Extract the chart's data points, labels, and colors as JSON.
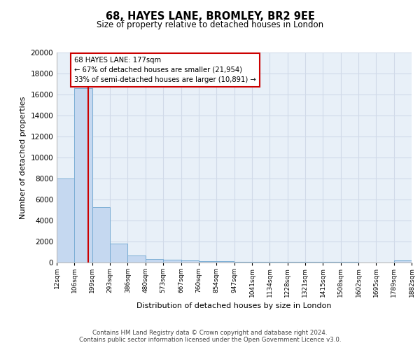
{
  "title": "68, HAYES LANE, BROMLEY, BR2 9EE",
  "subtitle": "Size of property relative to detached houses in London",
  "xlabel": "Distribution of detached houses by size in London",
  "ylabel": "Number of detached properties",
  "bar_color": "#c5d8f0",
  "bar_edge_color": "#7aadd4",
  "background_color": "#e8f0f8",
  "grid_color": "#d0dae8",
  "annotation_text": "68 HAYES LANE: 177sqm\n← 67% of detached houses are smaller (21,954)\n33% of semi-detached houses are larger (10,891) →",
  "red_line_x": 177,
  "bin_edges": [
    12,
    106,
    199,
    293,
    386,
    480,
    573,
    667,
    760,
    854,
    947,
    1041,
    1134,
    1228,
    1321,
    1415,
    1508,
    1602,
    1695,
    1789,
    1882
  ],
  "bar_heights": [
    8000,
    16600,
    5300,
    1800,
    700,
    350,
    280,
    200,
    150,
    120,
    90,
    75,
    65,
    55,
    45,
    40,
    35,
    28,
    22,
    180
  ],
  "ylim": [
    0,
    20000
  ],
  "yticks": [
    0,
    2000,
    4000,
    6000,
    8000,
    10000,
    12000,
    14000,
    16000,
    18000,
    20000
  ],
  "footer_text": "Contains HM Land Registry data © Crown copyright and database right 2024.\nContains public sector information licensed under the Open Government Licence v3.0.",
  "annotation_box_color": "#ffffff",
  "annotation_box_edge": "#cc0000",
  "red_line_color": "#cc0000"
}
